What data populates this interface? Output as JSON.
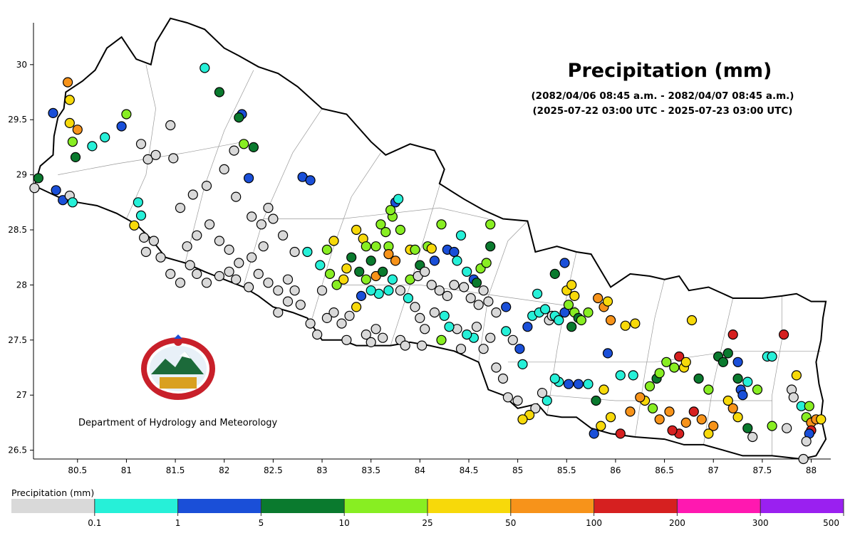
{
  "title": "Precipitation (mm)",
  "subtitle_nepali_date": "(2082/04/06 08:45 a.m. - 2082/04/07 08:45 a.m.)",
  "subtitle_utc": "(2025-07-22 03:00 UTC - 2025-07-23 03:00 UTC)",
  "organization": "Department of Hydrology and Meteorology",
  "axes": {
    "x_ticks": [
      "80.5",
      "81",
      "81.5",
      "82",
      "82.5",
      "83",
      "83.5",
      "84",
      "84.5",
      "85",
      "85.5",
      "86",
      "86.5",
      "87",
      "87.5",
      "88"
    ],
    "y_ticks": [
      "30",
      "29.5",
      "29",
      "28.5",
      "28",
      "27.5",
      "27",
      "26.5"
    ],
    "x_range": [
      80.05,
      88.2
    ],
    "y_range": [
      26.42,
      30.38
    ]
  },
  "legend": {
    "title": "Precipitation (mm)",
    "boundaries": [
      "0.1",
      "1",
      "5",
      "10",
      "25",
      "50",
      "100",
      "200",
      "300",
      "500"
    ],
    "colors": [
      "#d9d9d9",
      "#26f0d8",
      "#1a4fd8",
      "#0a7a2e",
      "#88ee22",
      "#f7d90a",
      "#f7931a",
      "#d62020",
      "#ff18b0",
      "#9a20f0"
    ]
  },
  "boundary": [
    [
      80.06,
      28.9
    ],
    [
      80.12,
      29.08
    ],
    [
      80.25,
      29.18
    ],
    [
      80.26,
      29.35
    ],
    [
      80.3,
      29.52
    ],
    [
      80.36,
      29.6
    ],
    [
      80.38,
      29.75
    ],
    [
      80.55,
      29.85
    ],
    [
      80.68,
      29.95
    ],
    [
      80.8,
      30.15
    ],
    [
      80.95,
      30.25
    ],
    [
      81.1,
      30.05
    ],
    [
      81.25,
      30.0
    ],
    [
      81.3,
      30.2
    ],
    [
      81.45,
      30.42
    ],
    [
      81.62,
      30.38
    ],
    [
      81.8,
      30.32
    ],
    [
      82.0,
      30.15
    ],
    [
      82.15,
      30.08
    ],
    [
      82.35,
      29.98
    ],
    [
      82.55,
      29.92
    ],
    [
      82.75,
      29.8
    ],
    [
      83.0,
      29.6
    ],
    [
      83.25,
      29.55
    ],
    [
      83.5,
      29.3
    ],
    [
      83.65,
      29.18
    ],
    [
      83.9,
      29.28
    ],
    [
      84.15,
      29.22
    ],
    [
      84.25,
      29.05
    ],
    [
      84.2,
      28.92
    ],
    [
      84.45,
      28.78
    ],
    [
      84.65,
      28.68
    ],
    [
      84.85,
      28.6
    ],
    [
      85.1,
      28.58
    ],
    [
      85.18,
      28.3
    ],
    [
      85.4,
      28.35
    ],
    [
      85.6,
      28.3
    ],
    [
      85.75,
      28.28
    ],
    [
      85.95,
      27.98
    ],
    [
      86.15,
      28.1
    ],
    [
      86.35,
      28.08
    ],
    [
      86.5,
      28.05
    ],
    [
      86.65,
      28.08
    ],
    [
      86.75,
      27.95
    ],
    [
      86.95,
      27.98
    ],
    [
      87.2,
      27.88
    ],
    [
      87.5,
      27.88
    ],
    [
      87.7,
      27.9
    ],
    [
      87.85,
      27.92
    ],
    [
      88.0,
      27.85
    ],
    [
      88.15,
      27.85
    ],
    [
      88.12,
      27.7
    ],
    [
      88.1,
      27.5
    ],
    [
      88.05,
      27.3
    ],
    [
      88.08,
      27.1
    ],
    [
      88.12,
      26.95
    ],
    [
      88.1,
      26.8
    ],
    [
      88.15,
      26.6
    ],
    [
      88.05,
      26.45
    ],
    [
      87.9,
      26.42
    ],
    [
      87.6,
      26.45
    ],
    [
      87.3,
      26.45
    ],
    [
      87.1,
      26.5
    ],
    [
      86.9,
      26.55
    ],
    [
      86.7,
      26.55
    ],
    [
      86.5,
      26.6
    ],
    [
      86.2,
      26.62
    ],
    [
      85.95,
      26.65
    ],
    [
      85.75,
      26.7
    ],
    [
      85.6,
      26.8
    ],
    [
      85.45,
      26.8
    ],
    [
      85.3,
      26.82
    ],
    [
      85.2,
      26.92
    ],
    [
      85.0,
      26.88
    ],
    [
      84.85,
      27.0
    ],
    [
      84.7,
      27.05
    ],
    [
      84.6,
      27.3
    ],
    [
      84.35,
      27.4
    ],
    [
      84.1,
      27.45
    ],
    [
      83.9,
      27.48
    ],
    [
      83.7,
      27.45
    ],
    [
      83.5,
      27.45
    ],
    [
      83.35,
      27.45
    ],
    [
      83.2,
      27.5
    ],
    [
      83.0,
      27.5
    ],
    [
      82.85,
      27.7
    ],
    [
      82.7,
      27.75
    ],
    [
      82.5,
      27.8
    ],
    [
      82.35,
      27.9
    ],
    [
      82.2,
      27.98
    ],
    [
      82.0,
      28.05
    ],
    [
      81.8,
      28.12
    ],
    [
      81.6,
      28.2
    ],
    [
      81.4,
      28.25
    ],
    [
      81.25,
      28.42
    ],
    [
      81.1,
      28.55
    ],
    [
      80.9,
      28.65
    ],
    [
      80.7,
      28.72
    ],
    [
      80.5,
      28.75
    ],
    [
      80.3,
      28.8
    ],
    [
      80.06,
      28.9
    ]
  ],
  "stations": [
    [
      80.06,
      28.88,
      0
    ],
    [
      80.1,
      28.97,
      3
    ],
    [
      80.28,
      28.86,
      2
    ],
    [
      80.35,
      28.77,
      2
    ],
    [
      80.42,
      28.81,
      0
    ],
    [
      80.45,
      28.75,
      1
    ],
    [
      80.25,
      29.56,
      2
    ],
    [
      80.4,
      29.84,
      6
    ],
    [
      80.42,
      29.68,
      5
    ],
    [
      80.42,
      29.47,
      5
    ],
    [
      80.5,
      29.41,
      6
    ],
    [
      80.45,
      29.3,
      4
    ],
    [
      80.48,
      29.16,
      3
    ],
    [
      80.65,
      29.26,
      1
    ],
    [
      80.78,
      29.34,
      1
    ],
    [
      80.95,
      29.44,
      2
    ],
    [
      81.0,
      29.55,
      4
    ],
    [
      81.15,
      29.28,
      0
    ],
    [
      81.22,
      29.14,
      0
    ],
    [
      81.3,
      29.18,
      0
    ],
    [
      81.12,
      28.75,
      1
    ],
    [
      81.15,
      28.63,
      1
    ],
    [
      81.08,
      28.54,
      5
    ],
    [
      81.18,
      28.43,
      0
    ],
    [
      81.28,
      28.4,
      0
    ],
    [
      81.2,
      28.3,
      0
    ],
    [
      81.35,
      28.25,
      0
    ],
    [
      81.45,
      28.1,
      0
    ],
    [
      81.55,
      28.02,
      0
    ],
    [
      81.65,
      28.18,
      0
    ],
    [
      81.72,
      28.1,
      0
    ],
    [
      81.82,
      28.02,
      0
    ],
    [
      81.95,
      28.08,
      0
    ],
    [
      82.05,
      28.12,
      0
    ],
    [
      82.12,
      28.05,
      0
    ],
    [
      82.25,
      27.98,
      0
    ],
    [
      82.35,
      28.1,
      0
    ],
    [
      82.45,
      28.02,
      0
    ],
    [
      82.55,
      27.95,
      0
    ],
    [
      82.65,
      28.05,
      0
    ],
    [
      81.62,
      28.35,
      0
    ],
    [
      81.72,
      28.45,
      0
    ],
    [
      81.85,
      28.55,
      0
    ],
    [
      81.95,
      28.4,
      0
    ],
    [
      82.05,
      28.32,
      0
    ],
    [
      82.15,
      28.2,
      0
    ],
    [
      82.28,
      28.25,
      0
    ],
    [
      82.4,
      28.35,
      0
    ],
    [
      82.5,
      28.6,
      0
    ],
    [
      82.6,
      28.45,
      0
    ],
    [
      82.45,
      28.7,
      0
    ],
    [
      82.38,
      28.55,
      0
    ],
    [
      82.28,
      28.62,
      0
    ],
    [
      81.55,
      28.7,
      0
    ],
    [
      81.68,
      28.82,
      0
    ],
    [
      81.82,
      28.9,
      0
    ],
    [
      82.12,
      28.8,
      0
    ],
    [
      82.0,
      29.05,
      0
    ],
    [
      82.1,
      29.22,
      0
    ],
    [
      82.2,
      29.28,
      4
    ],
    [
      82.3,
      29.25,
      3
    ],
    [
      82.18,
      29.55,
      2
    ],
    [
      82.15,
      29.52,
      3
    ],
    [
      81.8,
      29.97,
      1
    ],
    [
      81.95,
      29.75,
      3
    ],
    [
      81.48,
      29.15,
      0
    ],
    [
      81.45,
      29.45,
      0
    ],
    [
      82.25,
      28.97,
      2
    ],
    [
      82.8,
      28.98,
      2
    ],
    [
      82.88,
      28.95,
      2
    ],
    [
      82.72,
      28.3,
      0
    ],
    [
      82.85,
      28.3,
      1
    ],
    [
      82.98,
      28.18,
      1
    ],
    [
      83.05,
      28.32,
      4
    ],
    [
      83.12,
      28.4,
      5
    ],
    [
      83.25,
      28.15,
      5
    ],
    [
      83.35,
      28.5,
      5
    ],
    [
      83.42,
      28.42,
      5
    ],
    [
      83.5,
      28.22,
      3
    ],
    [
      83.45,
      28.05,
      4
    ],
    [
      83.55,
      28.08,
      6
    ],
    [
      83.62,
      28.12,
      3
    ],
    [
      83.68,
      28.35,
      4
    ],
    [
      83.72,
      28.62,
      4
    ],
    [
      83.75,
      28.75,
      2
    ],
    [
      83.78,
      28.78,
      1
    ],
    [
      83.8,
      28.5,
      4
    ],
    [
      83.68,
      28.28,
      6
    ],
    [
      83.75,
      28.22,
      6
    ],
    [
      83.9,
      28.32,
      5
    ],
    [
      83.95,
      28.32,
      4
    ],
    [
      84.0,
      28.18,
      3
    ],
    [
      84.08,
      28.35,
      4
    ],
    [
      84.12,
      28.33,
      5
    ],
    [
      84.15,
      28.22,
      2
    ],
    [
      84.22,
      28.55,
      4
    ],
    [
      84.28,
      28.32,
      2
    ],
    [
      84.35,
      28.3,
      2
    ],
    [
      84.38,
      28.22,
      1
    ],
    [
      84.42,
      28.45,
      1
    ],
    [
      84.48,
      28.12,
      1
    ],
    [
      84.55,
      28.05,
      2
    ],
    [
      84.62,
      28.15,
      4
    ],
    [
      84.68,
      28.2,
      4
    ],
    [
      84.72,
      28.35,
      3
    ],
    [
      84.72,
      28.55,
      4
    ],
    [
      84.58,
      28.02,
      3
    ],
    [
      84.65,
      27.95,
      0
    ],
    [
      84.7,
      27.85,
      0
    ],
    [
      84.78,
      27.75,
      0
    ],
    [
      84.88,
      27.8,
      2
    ],
    [
      84.95,
      27.5,
      0
    ],
    [
      84.88,
      27.58,
      1
    ],
    [
      85.02,
      27.42,
      2
    ],
    [
      85.05,
      27.28,
      1
    ],
    [
      85.1,
      27.62,
      2
    ],
    [
      85.15,
      27.72,
      1
    ],
    [
      85.2,
      27.92,
      1
    ],
    [
      85.22,
      27.75,
      1
    ],
    [
      85.28,
      27.78,
      1
    ],
    [
      85.32,
      27.68,
      0
    ],
    [
      85.35,
      27.72,
      0
    ],
    [
      85.38,
      27.72,
      1
    ],
    [
      85.42,
      27.68,
      1
    ],
    [
      85.48,
      27.75,
      2
    ],
    [
      85.52,
      27.82,
      4
    ],
    [
      85.55,
      27.62,
      3
    ],
    [
      85.58,
      27.75,
      4
    ],
    [
      85.62,
      27.7,
      3
    ],
    [
      85.65,
      27.68,
      4
    ],
    [
      85.5,
      27.95,
      5
    ],
    [
      85.55,
      28.0,
      5
    ],
    [
      85.58,
      27.9,
      5
    ],
    [
      85.48,
      28.2,
      2
    ],
    [
      85.38,
      28.1,
      3
    ],
    [
      85.72,
      27.75,
      4
    ],
    [
      85.82,
      27.88,
      6
    ],
    [
      85.88,
      27.8,
      6
    ],
    [
      85.92,
      27.85,
      5
    ],
    [
      85.95,
      27.68,
      6
    ],
    [
      86.1,
      27.63,
      5
    ],
    [
      86.2,
      27.65,
      5
    ],
    [
      85.92,
      27.38,
      2
    ],
    [
      86.05,
      27.18,
      1
    ],
    [
      86.18,
      27.18,
      1
    ],
    [
      86.35,
      27.08,
      4
    ],
    [
      86.42,
      27.15,
      3
    ],
    [
      86.45,
      27.2,
      4
    ],
    [
      86.52,
      27.3,
      4
    ],
    [
      86.6,
      27.25,
      4
    ],
    [
      86.65,
      27.35,
      7
    ],
    [
      86.7,
      27.25,
      5
    ],
    [
      86.72,
      27.3,
      5
    ],
    [
      86.78,
      27.68,
      5
    ],
    [
      86.85,
      27.15,
      3
    ],
    [
      86.95,
      27.05,
      4
    ],
    [
      87.05,
      27.35,
      3
    ],
    [
      87.1,
      27.3,
      3
    ],
    [
      87.15,
      27.38,
      3
    ],
    [
      87.2,
      27.55,
      7
    ],
    [
      87.25,
      27.3,
      2
    ],
    [
      87.28,
      27.05,
      2
    ],
    [
      87.3,
      27.0,
      2
    ],
    [
      87.25,
      27.15,
      3
    ],
    [
      87.35,
      27.12,
      1
    ],
    [
      87.45,
      27.05,
      4
    ],
    [
      87.55,
      27.35,
      1
    ],
    [
      87.6,
      27.35,
      1
    ],
    [
      87.72,
      27.55,
      7
    ],
    [
      87.8,
      27.05,
      0
    ],
    [
      87.85,
      27.18,
      5
    ],
    [
      87.82,
      26.98,
      0
    ],
    [
      87.9,
      26.9,
      1
    ],
    [
      87.95,
      26.8,
      4
    ],
    [
      88.0,
      26.75,
      6
    ],
    [
      87.98,
      26.9,
      4
    ],
    [
      88.05,
      26.78,
      6
    ],
    [
      88.1,
      26.78,
      5
    ],
    [
      88.0,
      26.68,
      7
    ],
    [
      87.98,
      26.65,
      2
    ],
    [
      87.95,
      26.58,
      0
    ],
    [
      87.92,
      26.42,
      0
    ],
    [
      87.75,
      26.7,
      0
    ],
    [
      87.6,
      26.72,
      4
    ],
    [
      87.4,
      26.62,
      0
    ],
    [
      87.35,
      26.7,
      3
    ],
    [
      87.25,
      26.8,
      5
    ],
    [
      87.2,
      26.88,
      6
    ],
    [
      87.15,
      26.95,
      5
    ],
    [
      87.0,
      26.72,
      6
    ],
    [
      86.95,
      26.65,
      5
    ],
    [
      86.88,
      26.78,
      6
    ],
    [
      86.8,
      26.85,
      7
    ],
    [
      86.72,
      26.75,
      6
    ],
    [
      86.65,
      26.65,
      7
    ],
    [
      86.58,
      26.68,
      7
    ],
    [
      86.55,
      26.85,
      6
    ],
    [
      86.45,
      26.78,
      6
    ],
    [
      86.38,
      26.88,
      4
    ],
    [
      86.3,
      26.95,
      5
    ],
    [
      86.25,
      26.98,
      6
    ],
    [
      86.15,
      26.85,
      6
    ],
    [
      86.05,
      26.65,
      7
    ],
    [
      85.95,
      26.8,
      5
    ],
    [
      85.85,
      26.72,
      5
    ],
    [
      85.78,
      26.65,
      2
    ],
    [
      85.8,
      26.95,
      3
    ],
    [
      85.88,
      27.05,
      5
    ],
    [
      85.72,
      27.1,
      1
    ],
    [
      85.62,
      27.1,
      2
    ],
    [
      85.52,
      27.1,
      2
    ],
    [
      85.42,
      27.12,
      1
    ],
    [
      85.38,
      27.15,
      1
    ],
    [
      85.3,
      26.95,
      1
    ],
    [
      85.25,
      27.02,
      0
    ],
    [
      85.18,
      26.88,
      0
    ],
    [
      85.12,
      26.82,
      5
    ],
    [
      85.05,
      26.78,
      5
    ],
    [
      85.0,
      26.95,
      0
    ],
    [
      84.9,
      26.98,
      0
    ],
    [
      84.85,
      27.15,
      0
    ],
    [
      84.78,
      27.25,
      0
    ],
    [
      84.65,
      27.42,
      0
    ],
    [
      84.55,
      27.52,
      1
    ],
    [
      84.48,
      27.55,
      1
    ],
    [
      84.38,
      27.6,
      0
    ],
    [
      84.3,
      27.62,
      1
    ],
    [
      84.25,
      27.72,
      1
    ],
    [
      84.22,
      27.5,
      4
    ],
    [
      84.15,
      27.75,
      0
    ],
    [
      84.05,
      27.6,
      0
    ],
    [
      84.0,
      27.7,
      0
    ],
    [
      83.95,
      27.8,
      0
    ],
    [
      83.88,
      27.88,
      1
    ],
    [
      83.8,
      27.95,
      0
    ],
    [
      83.72,
      28.05,
      1
    ],
    [
      83.68,
      27.95,
      1
    ],
    [
      83.58,
      27.92,
      1
    ],
    [
      83.5,
      27.95,
      1
    ],
    [
      83.4,
      27.9,
      2
    ],
    [
      83.35,
      27.8,
      5
    ],
    [
      83.28,
      27.72,
      0
    ],
    [
      83.2,
      27.65,
      0
    ],
    [
      83.12,
      27.75,
      0
    ],
    [
      83.05,
      27.7,
      0
    ],
    [
      82.95,
      27.55,
      0
    ],
    [
      82.88,
      27.65,
      0
    ],
    [
      82.78,
      27.82,
      0
    ],
    [
      82.72,
      27.95,
      0
    ],
    [
      82.65,
      27.85,
      0
    ],
    [
      82.55,
      27.75,
      0
    ],
    [
      83.0,
      27.95,
      0
    ],
    [
      83.08,
      28.1,
      4
    ],
    [
      83.15,
      28.0,
      4
    ],
    [
      83.22,
      28.05,
      5
    ],
    [
      83.3,
      28.25,
      3
    ],
    [
      83.38,
      28.12,
      3
    ],
    [
      83.45,
      28.35,
      4
    ],
    [
      83.55,
      28.35,
      4
    ],
    [
      83.6,
      28.55,
      4
    ],
    [
      83.65,
      28.48,
      4
    ],
    [
      83.7,
      28.68,
      4
    ],
    [
      83.9,
      28.05,
      4
    ],
    [
      83.98,
      28.08,
      0
    ],
    [
      84.05,
      28.12,
      0
    ],
    [
      84.12,
      28.0,
      0
    ],
    [
      84.2,
      27.95,
      0
    ],
    [
      84.28,
      27.9,
      0
    ],
    [
      84.35,
      28.0,
      0
    ],
    [
      84.45,
      27.98,
      0
    ],
    [
      84.52,
      27.88,
      0
    ],
    [
      84.6,
      27.82,
      0
    ],
    [
      83.45,
      27.55,
      0
    ],
    [
      83.5,
      27.48,
      0
    ],
    [
      83.55,
      27.6,
      0
    ],
    [
      83.25,
      27.5,
      0
    ],
    [
      83.62,
      27.52,
      0
    ],
    [
      83.8,
      27.5,
      0
    ],
    [
      83.85,
      27.45,
      0
    ],
    [
      84.02,
      27.45,
      0
    ],
    [
      84.42,
      27.42,
      0
    ],
    [
      84.58,
      27.62,
      0
    ],
    [
      84.72,
      27.52,
      0
    ]
  ]
}
